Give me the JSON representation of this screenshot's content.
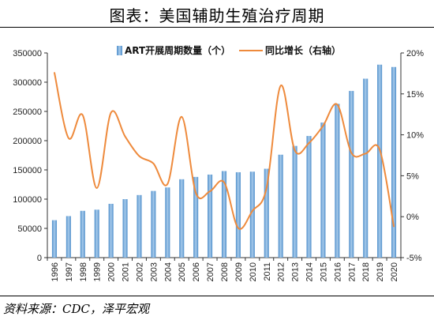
{
  "title": "图表：美国辅助生殖治疗周期",
  "source": "资料来源：CDC，泽平宏观",
  "colors": {
    "bar": "#4f8fcb",
    "bar_light": "#a8cbeb",
    "line": "#ee8a3c"
  },
  "chart_data": {
    "type": "bar",
    "categories": [
      "1996",
      "1997",
      "1998",
      "1999",
      "2000",
      "2001",
      "2002",
      "2003",
      "2004",
      "2005",
      "2006",
      "2007",
      "2008",
      "2009",
      "2010",
      "2011",
      "2012",
      "2013",
      "2014",
      "2015",
      "2016",
      "2017",
      "2018",
      "2019",
      "2020"
    ],
    "series": [
      {
        "name": "ART开展周期数量（个）",
        "type": "bar",
        "axis": "left",
        "values": [
          64000,
          71000,
          80000,
          82000,
          92000,
          100000,
          107000,
          114000,
          120000,
          134000,
          138000,
          142000,
          148000,
          146000,
          147000,
          152000,
          176000,
          191000,
          208000,
          231000,
          263000,
          285000,
          306000,
          330000,
          326000
        ]
      },
      {
        "name": "同比增长（右轴）",
        "type": "line",
        "axis": "right",
        "values": [
          17.6,
          9.6,
          12.4,
          3.5,
          12.7,
          9.8,
          7.4,
          6.5,
          4.0,
          12.2,
          2.9,
          3.1,
          4.2,
          -1.4,
          0.7,
          3.5,
          16.0,
          8.1,
          9.0,
          11.1,
          13.7,
          7.8,
          7.7,
          8.2,
          -1.2
        ]
      }
    ],
    "yleft": {
      "lim": [
        0,
        350000
      ],
      "ticks": [
        "0",
        "50000",
        "100000",
        "150000",
        "200000",
        "250000",
        "300000",
        "350000"
      ]
    },
    "yright": {
      "lim": [
        -5,
        20
      ],
      "ticks": [
        "-5%",
        "0%",
        "5%",
        "10%",
        "15%",
        "20%"
      ]
    },
    "legend": "top",
    "grid": false
  }
}
